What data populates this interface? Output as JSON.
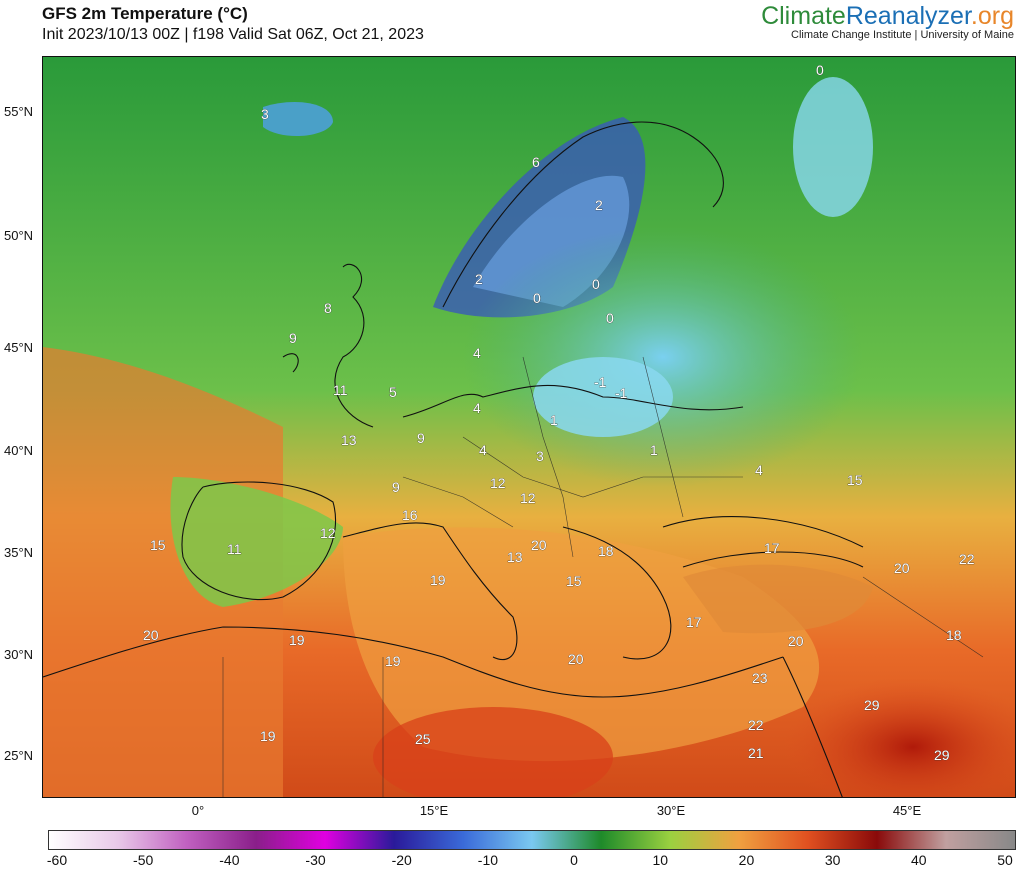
{
  "header": {
    "title": "GFS 2m Temperature (°C)",
    "subtitle": "Init 2023/10/13 00Z | f198 Valid Sat 06Z, Oct 21, 2023"
  },
  "brand": {
    "part1": "Climate",
    "part2": "Reanalyzer",
    "part3": ".org",
    "subtitle": "Climate Change Institute | University of Maine"
  },
  "axes": {
    "lat_labels": [
      "55°N",
      "50°N",
      "45°N",
      "40°N",
      "35°N",
      "30°N",
      "25°N"
    ],
    "lon_labels": [
      "0°",
      "15°E",
      "30°E",
      "45°E"
    ]
  },
  "colorbar": {
    "ticks": [
      "-60",
      "-50",
      "-40",
      "-30",
      "-20",
      "-10",
      "0",
      "10",
      "20",
      "30",
      "40",
      "50"
    ],
    "colors": [
      "#ffffff",
      "#e8c8e8",
      "#c060c0",
      "#8a1f8a",
      "#e000e0",
      "#2a1a9a",
      "#3a6ad8",
      "#7ac8f0",
      "#1e8a2a",
      "#9ad040",
      "#f0a040",
      "#e05020",
      "#8a0a0a",
      "#c0a0a0",
      "#888888"
    ]
  },
  "map": {
    "temperature_labels": [
      "3",
      "6",
      "2",
      "2",
      "0",
      "8",
      "9",
      "0",
      "0",
      "4",
      "0",
      "11",
      "5",
      "-1",
      "-1",
      "4",
      "1",
      "9",
      "13",
      "4",
      "3",
      "1",
      "4",
      "15",
      "12",
      "12",
      "9",
      "16",
      "20",
      "13",
      "18",
      "17",
      "15",
      "11",
      "12",
      "15",
      "20",
      "22",
      "19",
      "17",
      "18",
      "20",
      "19",
      "19",
      "20",
      "23",
      "20",
      "29",
      "22",
      "19",
      "25",
      "21",
      "29"
    ]
  }
}
